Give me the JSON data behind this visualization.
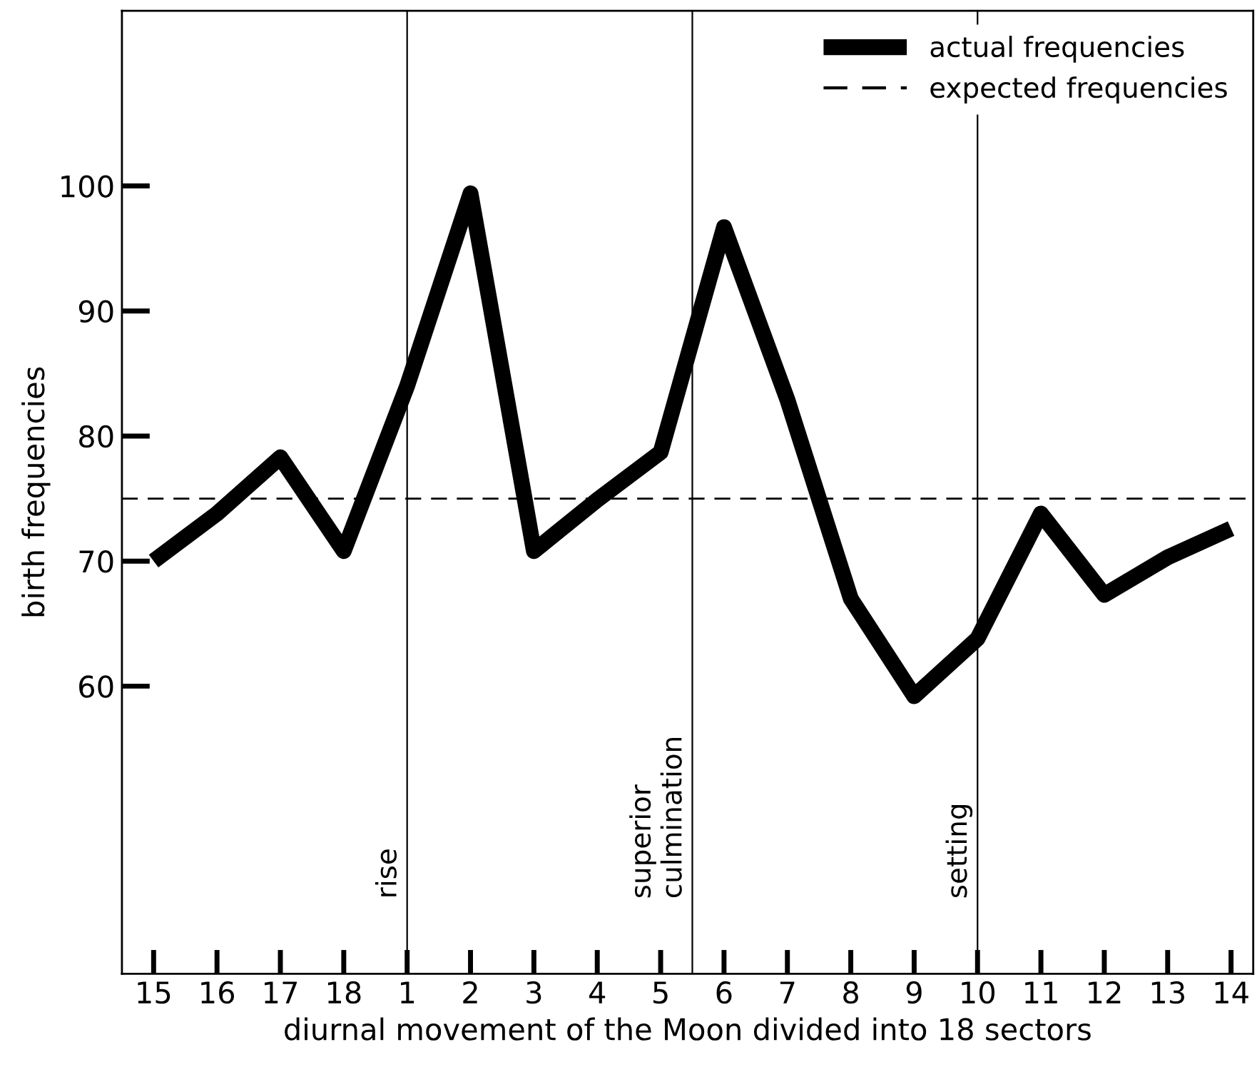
{
  "chart_data": {
    "type": "line",
    "xlabel": "diurnal movement of the Moon divided into 18 sectors",
    "ylabel": "birth frequencies",
    "categories": [
      "15",
      "16",
      "17",
      "18",
      "1",
      "2",
      "3",
      "4",
      "5",
      "6",
      "7",
      "8",
      "9",
      "10",
      "11",
      "12",
      "13",
      "14"
    ],
    "series": [
      {
        "name": "actual frequencies",
        "color": "#000000",
        "values": [
          70.0,
          73.8,
          78.3,
          70.8,
          84.0,
          99.4,
          70.8,
          74.9,
          78.7,
          96.7,
          82.9,
          67.0,
          59.2,
          63.8,
          73.8,
          67.3,
          70.3,
          72.6
        ]
      }
    ],
    "ylim": [
      37,
      114
    ],
    "yticks": [
      60,
      70,
      80,
      90,
      100
    ],
    "ref_lines": [
      {
        "axis": "y",
        "value": 75.0,
        "label": "expected frequencies",
        "line_style": "dashed",
        "color": "#000000"
      },
      {
        "axis": "x",
        "value": "1",
        "label": "rise",
        "color": "#000000"
      },
      {
        "axis": "x",
        "value": "10",
        "label": "setting",
        "color": "#000000"
      }
    ],
    "annotations": [
      "superior\nculmination"
    ],
    "grid": false,
    "legend": "top right",
    "line_style": "solid",
    "marker": "none"
  }
}
